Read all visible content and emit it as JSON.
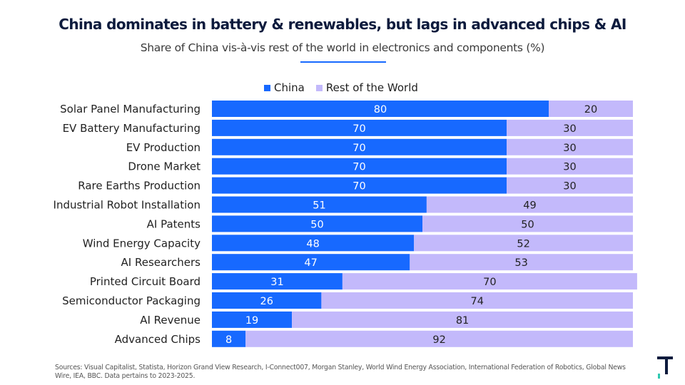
{
  "title": "China dominates in battery & renewables, but lags in advanced chips & AI",
  "subtitle": "Share of China vis-à-vis rest of the world in electronics and components (%)",
  "source_note": "Sources: Visual Capitalist, Statista, Horizon Grand View Research, I-Connect007, Morgan Stanley, World Wind Energy Association, International Federation of Robotics, Global News Wire, IEA, BBC. Data pertains to 2023-2025.",
  "colors": {
    "china": "#1769ff",
    "rest_of_world": "#c3b9fb",
    "title": "#0d1b3d",
    "logo_dark": "#0d1b3d",
    "logo_accent": "#2fc9b0"
  },
  "logo": {
    "icon": "stylized-t-logo-icon"
  },
  "chart_data": {
    "type": "bar",
    "orientation": "horizontal",
    "stacked": true,
    "title": "China dominates in battery & renewables, but lags in advanced chips & AI",
    "subtitle": "Share of China vis-à-vis rest of the world in electronics and components (%)",
    "xlabel": "",
    "ylabel": "",
    "xlim": [
      0,
      100
    ],
    "grid": false,
    "legend_position": "top-center",
    "categories": [
      "Solar Panel Manufacturing",
      "EV Battery Manufacturing",
      "EV Production",
      "Drone Market",
      "Rare Earths Production",
      "Industrial Robot Installation",
      "AI Patents",
      "Wind Energy Capacity",
      "AI Researchers",
      "Printed Circuit Board",
      "Semiconductor Packaging",
      "AI Revenue",
      "Advanced Chips"
    ],
    "series": [
      {
        "name": "China",
        "values": [
          80,
          70,
          70,
          70,
          70,
          51,
          50,
          48,
          47,
          31,
          26,
          19,
          8
        ],
        "color": "#1769ff",
        "label_color": "#ffffff"
      },
      {
        "name": "Rest of the World",
        "values": [
          20,
          30,
          30,
          30,
          30,
          49,
          50,
          52,
          53,
          70,
          74,
          81,
          92
        ],
        "color": "#c3b9fb",
        "label_color": "#222222"
      }
    ]
  }
}
